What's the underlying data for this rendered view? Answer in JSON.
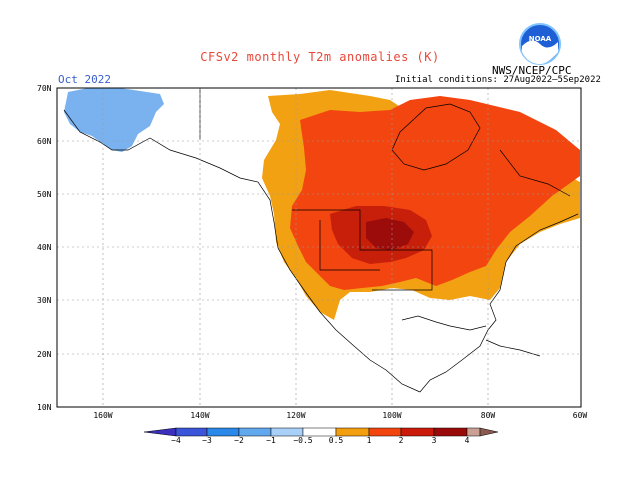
{
  "header": {
    "title": "CFSv2 monthly T2m anomalies (K)",
    "valid_month": "Oct 2022",
    "initial_conditions": "Initial conditions: 27Aug2022–5Sep2022",
    "agency": "NWS/NCEP/CPC",
    "logo_text": "NOAA"
  },
  "axes": {
    "lat_labels": [
      "70N",
      "60N",
      "50N",
      "40N",
      "30N",
      "20N",
      "10N"
    ],
    "lon_labels": [
      "160W",
      "140W",
      "120W",
      "100W",
      "80W",
      "60W"
    ]
  },
  "colorbar": {
    "ticks": [
      "−4",
      "−3",
      "−2",
      "−1",
      "−0.5",
      "0.5",
      "1",
      "2",
      "3",
      "4"
    ],
    "colors": [
      "#3c2fbd",
      "#3a55d9",
      "#2a88e8",
      "#62a8ef",
      "#a9d1f7",
      "#ffffff",
      "#f29e0e",
      "#f2440f",
      "#cc1a0a",
      "#9a0a08",
      "#c9a093",
      "#8a5a4f"
    ]
  },
  "palette": {
    "cool": "#7ab2ef",
    "warm_05_1": "#f2a113",
    "warm_1_2": "#f2450f",
    "warm_2_3": "#c81f0a",
    "warm_3_4": "#9c0c0a"
  }
}
